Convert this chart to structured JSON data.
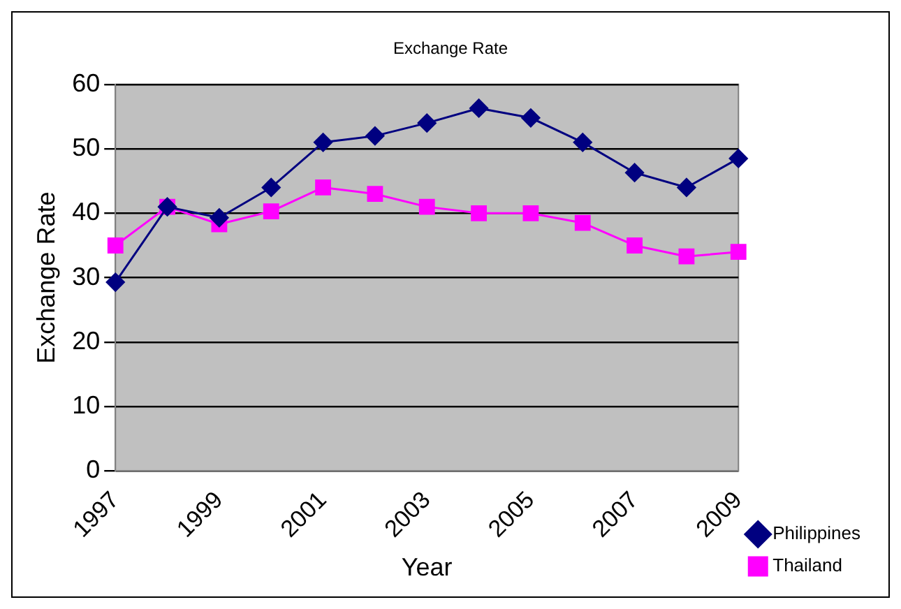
{
  "chart_data": {
    "type": "line",
    "title": "Exchange Rate",
    "xlabel": "Year",
    "ylabel": "Exchange Rate",
    "categories": [
      "1997",
      null,
      "1999",
      null,
      "2001",
      null,
      "2003",
      null,
      "2005",
      null,
      "2007",
      null,
      "2009"
    ],
    "series": [
      {
        "name": "Philippines",
        "color": "#000080",
        "marker": "diamond",
        "values": [
          29.3,
          41,
          39.3,
          44,
          51,
          52,
          54,
          56.3,
          54.8,
          51,
          46.3,
          44,
          48.5
        ]
      },
      {
        "name": "Thailand",
        "color": "#ff00ff",
        "marker": "square",
        "values": [
          35,
          41,
          38.3,
          40.3,
          44,
          43,
          41,
          40,
          40,
          38.5,
          35,
          33.3,
          34
        ]
      }
    ],
    "ylim": [
      0,
      60
    ],
    "yticks": [
      0,
      10,
      20,
      30,
      40,
      50,
      60
    ],
    "grid": "y",
    "legend": "bottom right"
  }
}
